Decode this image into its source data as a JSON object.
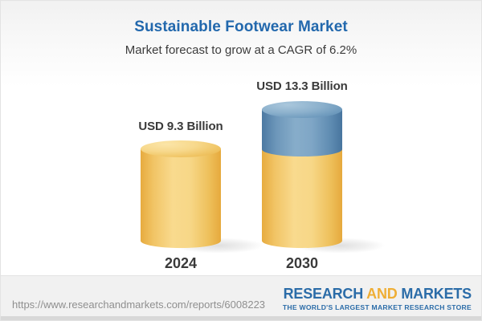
{
  "header": {
    "title": "Sustainable Footwear Market",
    "subtitle": "Market forecast to grow at a CAGR of 6.2%"
  },
  "chart_data": {
    "type": "bar",
    "style": "3d-cylinder",
    "title": "Sustainable Footwear Market",
    "subtitle": "Market forecast to grow at a CAGR of 6.2%",
    "cagr_percent": 6.2,
    "unit": "USD Billion",
    "categories": [
      "2024",
      "2030"
    ],
    "values": [
      9.3,
      13.3
    ],
    "bars": [
      {
        "category": "2024",
        "value": 9.3,
        "label": "USD 9.3 Billion",
        "segments": [
          {
            "name": "base",
            "value": 9.3,
            "color": "#f2c463"
          }
        ]
      },
      {
        "category": "2030",
        "value": 13.3,
        "label": "USD 13.3 Billion",
        "segments": [
          {
            "name": "base",
            "value": 9.3,
            "color": "#f2c463"
          },
          {
            "name": "growth",
            "value": 4.0,
            "color": "#6f9cc0"
          }
        ]
      }
    ],
    "colors": {
      "gold": "#f2c463",
      "blue": "#6f9cc0",
      "title": "#2268ad",
      "text": "#3a3a3a"
    },
    "legend": "none",
    "grid": false,
    "ylim": [
      0,
      14
    ]
  },
  "footer": {
    "url": "https://www.researchandmarkets.com/reports/6008223",
    "logo": {
      "word1": "RESEARCH",
      "word2": "AND",
      "word3": "MARKETS",
      "tagline": "THE WORLD'S LARGEST MARKET RESEARCH STORE"
    }
  }
}
